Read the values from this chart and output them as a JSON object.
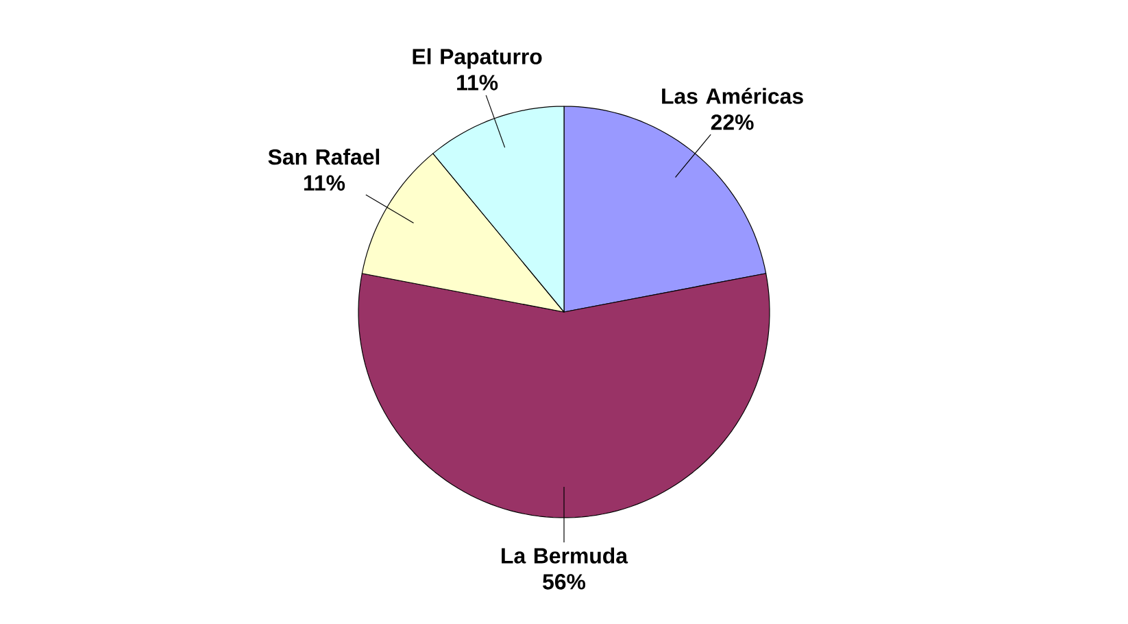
{
  "chart_data": {
    "type": "pie",
    "categories": [
      "Las Américas",
      "La Bermuda",
      "San Rafael",
      "El Papaturro"
    ],
    "values": [
      22,
      56,
      11,
      11
    ],
    "colors": [
      "#9999ff",
      "#993366",
      "#ffffcc",
      "#ccffff"
    ],
    "value_labels": [
      "22%",
      "56%",
      "11%",
      "11%"
    ]
  }
}
